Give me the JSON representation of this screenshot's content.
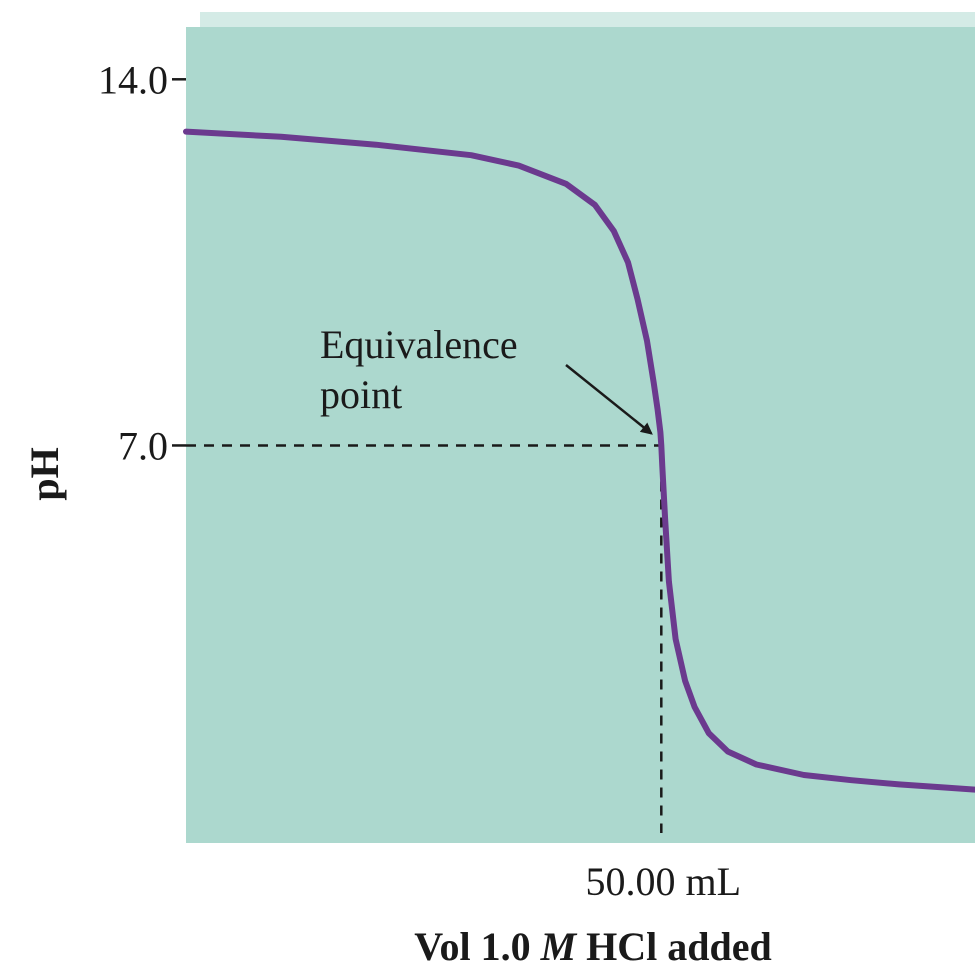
{
  "chart_data": {
    "type": "line",
    "title": "",
    "ylabel": "pH",
    "xlabel": {
      "pre": "Vol 1.0 ",
      "italic": "M",
      "post": " HCl added"
    },
    "y_ticks": [
      {
        "value": 14.0,
        "label": "14.0"
      },
      {
        "value": 7.0,
        "label": "7.0"
      }
    ],
    "x_ticks": [
      {
        "value": 50.0,
        "label": "50.00 mL"
      }
    ],
    "xlim": [
      0,
      83
    ],
    "ylim": [
      -0.6,
      15.0
    ],
    "grid": false,
    "series": [
      {
        "color": "#6b3a8e",
        "x": [
          0,
          10,
          20,
          30,
          35,
          40,
          43,
          45,
          46.5,
          47.5,
          48.5,
          49.2,
          49.6,
          49.9,
          50.0,
          50.1,
          50.4,
          50.8,
          51.5,
          52.5,
          53.5,
          55,
          57,
          60,
          65,
          70,
          75,
          80,
          83
        ],
        "y": [
          13.0,
          12.9,
          12.75,
          12.55,
          12.35,
          12.0,
          11.6,
          11.1,
          10.5,
          9.8,
          9.0,
          8.2,
          7.7,
          7.25,
          7.0,
          6.6,
          5.6,
          4.4,
          3.3,
          2.5,
          2.0,
          1.5,
          1.15,
          0.9,
          0.7,
          0.6,
          0.52,
          0.46,
          0.42
        ]
      }
    ],
    "annotations": [
      {
        "lines": [
          "Equivalence",
          "point"
        ],
        "target_x": 50.0,
        "target_y": 7.0
      }
    ],
    "reference_lines": [
      {
        "orientation": "horizontal",
        "value": 7.0,
        "style": "dashed"
      },
      {
        "orientation": "vertical",
        "value": 50.0,
        "style": "dashed"
      }
    ],
    "colors": {
      "plot_background": "#acd8ce",
      "curve": "#6b3a8e",
      "top_edge": "#d4ebe6"
    }
  }
}
